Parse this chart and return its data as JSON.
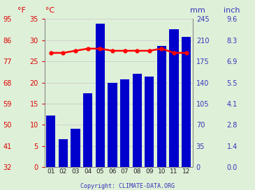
{
  "months": [
    "01",
    "02",
    "03",
    "04",
    "05",
    "06",
    "07",
    "08",
    "09",
    "10",
    "11",
    "12"
  ],
  "rainfall_mm": [
    85,
    46,
    63,
    122,
    237,
    140,
    145,
    155,
    150,
    200,
    228,
    215
  ],
  "temp_c": [
    27.0,
    27.0,
    27.5,
    28.0,
    28.0,
    27.5,
    27.5,
    27.5,
    27.5,
    28.0,
    27.0,
    27.0
  ],
  "bar_color": "#0000cc",
  "line_color": "#ff0000",
  "marker_color": "#ff0000",
  "background_color": "#dff0d8",
  "left_axis_color": "#dd0000",
  "right_axis_color": "#3333bb",
  "copyright": "Copyright: CLIMATE-DATA.ORG",
  "left_ticks_c": [
    0,
    5,
    10,
    15,
    20,
    25,
    30,
    35
  ],
  "left_ticks_f": [
    32,
    41,
    50,
    59,
    68,
    77,
    86,
    95
  ],
  "right_ticks_mm": [
    0,
    35,
    70,
    105,
    140,
    175,
    210,
    245
  ],
  "right_ticks_inch": [
    "0.0",
    "1.4",
    "2.8",
    "4.1",
    "5.5",
    "6.9",
    "8.3",
    "9.6"
  ],
  "ylim_mm": [
    0,
    245
  ],
  "ylim_c": [
    0,
    35
  ],
  "grid_color": "#cccccc"
}
